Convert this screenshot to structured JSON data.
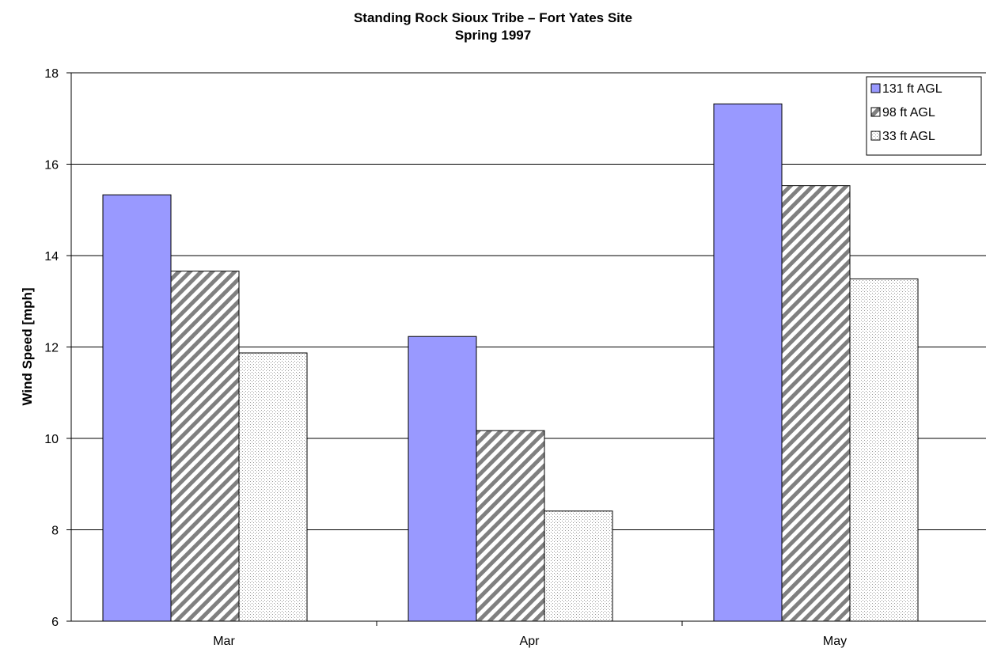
{
  "chart_data": {
    "type": "bar",
    "title": "Standing Rock Sioux Tribe – Fort Yates Site",
    "subtitle": "Spring 1997",
    "xlabel": "",
    "ylabel": "Wind Speed [mph]",
    "ylim": [
      6,
      18
    ],
    "yticks": [
      6,
      8,
      10,
      12,
      14,
      16,
      18
    ],
    "grid": true,
    "legend_position": "top-right",
    "categories": [
      "Mar",
      "Apr",
      "May"
    ],
    "series": [
      {
        "name": "131 ft AGL",
        "values": [
          15.33,
          12.23,
          17.32
        ],
        "color": "#9999ff",
        "pattern": "solid"
      },
      {
        "name": "98 ft AGL",
        "values": [
          13.66,
          10.17,
          15.53
        ],
        "color": "#808080",
        "pattern": "diagonal-stripes"
      },
      {
        "name": "33 ft AGL",
        "values": [
          11.87,
          8.41,
          13.49
        ],
        "color": "#c0c0c0",
        "pattern": "dots"
      }
    ]
  }
}
